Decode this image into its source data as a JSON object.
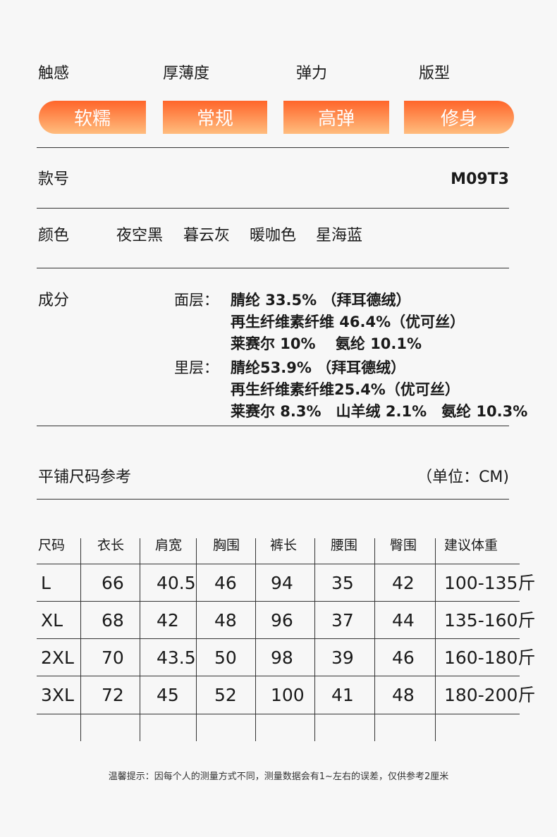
{
  "attributes": {
    "labels": [
      "触感",
      "厚薄度",
      "弹力",
      "版型"
    ],
    "values": [
      "软糯",
      "常规",
      "高弹",
      "修身"
    ],
    "pill_gradient": [
      "#ff652a",
      "#ffbd7e"
    ]
  },
  "style_no": {
    "label": "款号",
    "value": "M09T3"
  },
  "colors": {
    "label": "颜色",
    "items": [
      "夜空黑",
      "暮云灰",
      "暖咖色",
      "星海蓝"
    ]
  },
  "composition": {
    "label": "成分",
    "outer": {
      "label": "面层：",
      "lines": [
        "腈纶 33.5% （拜耳德绒）",
        "再生纤维素纤维 46.4%（优可丝）",
        "莱赛尔 10%　 氨纶 10.1%"
      ]
    },
    "inner": {
      "label": "里层：",
      "lines": [
        "腈纶53.9% （拜耳德绒）",
        "再生纤维素纤维25.4%（优可丝）",
        "莱赛尔 8.3%　山羊绒 2.1%　氨纶 10.3%"
      ]
    }
  },
  "size_chart": {
    "title": "平铺尺码参考",
    "unit": "（单位：CM)",
    "headers": [
      "尺码",
      "衣长",
      "肩宽",
      "胸围",
      "裤长",
      "腰围",
      "臀围",
      "建议体重"
    ],
    "rows": [
      [
        "L",
        "66",
        "40.5",
        "46",
        "94",
        "35",
        "42",
        "100-135斤"
      ],
      [
        "XL",
        "68",
        "42",
        "48",
        "96",
        "37",
        "44",
        "135-160斤"
      ],
      [
        "2XL",
        "70",
        "43.5",
        "50",
        "98",
        "39",
        "46",
        "160-180斤"
      ],
      [
        "3XL",
        "72",
        "45",
        "52",
        "100",
        "41",
        "48",
        "180-200斤"
      ]
    ]
  },
  "note": "温馨提示：因每个人的测量方式不同，测量数据会有1~左右的误差，仅供参考2厘米"
}
